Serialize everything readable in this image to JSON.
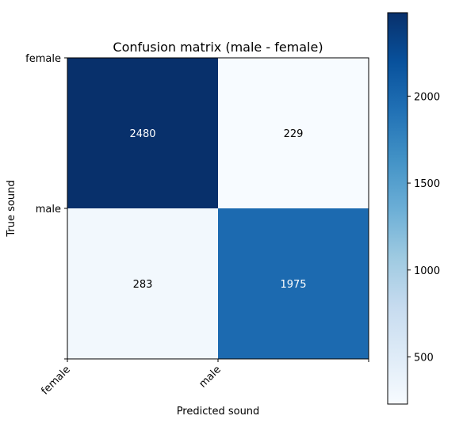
{
  "chart_data": {
    "type": "heatmap",
    "title": "Confusion matrix (male - female)",
    "xlabel": "Predicted sound",
    "ylabel": "True sound",
    "x_categories": [
      "female",
      "male"
    ],
    "y_categories": [
      "female",
      "male"
    ],
    "x_tick_labels": [
      "female",
      "male",
      ""
    ],
    "y_tick_labels": [
      "female",
      "male",
      ""
    ],
    "values": [
      [
        2480,
        229
      ],
      [
        283,
        1975
      ]
    ],
    "colormap": "Blues",
    "colorbar": {
      "ticks": [
        500,
        1000,
        1500,
        2000
      ],
      "tick_labels": [
        "500",
        "1000",
        "1500",
        "2000"
      ],
      "range": [
        229,
        2480
      ]
    },
    "cell_label_colors": {
      "dark": "#ffffff",
      "light": "#000000"
    },
    "grid": false,
    "legend": "none"
  }
}
